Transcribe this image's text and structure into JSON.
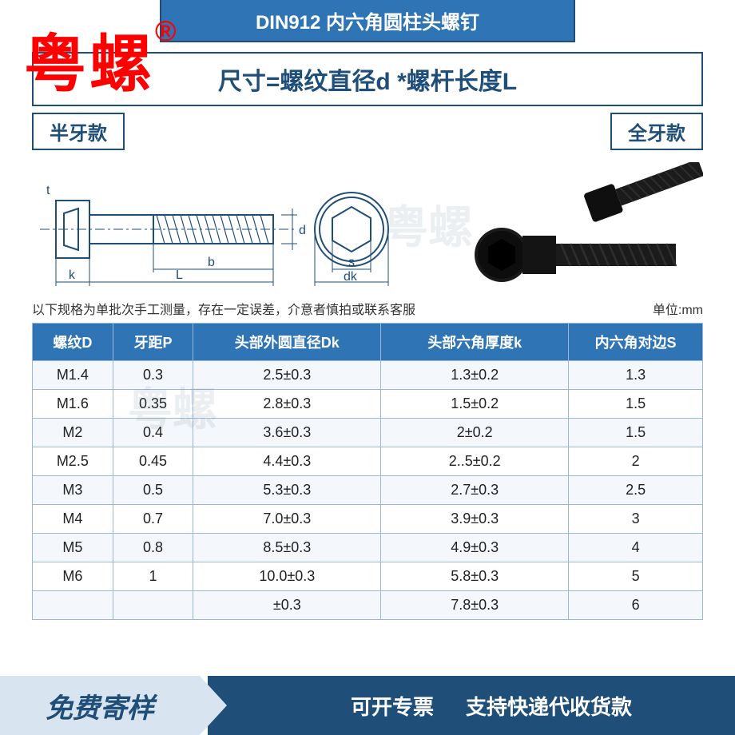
{
  "header": {
    "standard_title": "DIN912 内六角圆柱头螺钉"
  },
  "brand_watermark": "粤螺",
  "brand_symbol": "®",
  "formula": "尺寸=螺纹直径d *螺杆长度L",
  "variants": {
    "left_label": "半牙款",
    "right_label": "全牙款"
  },
  "diagram_labels": {
    "t": "t",
    "d": "d",
    "b": "b",
    "k": "k",
    "L": "L",
    "s": "s",
    "dk": "dk"
  },
  "light_watermark": "粤螺",
  "note_text": "以下规格为单批次手工测量，存在一定误差，介意者慎拍或联系客服",
  "unit_label": "单位:mm",
  "table": {
    "columns": [
      "螺纹D",
      "牙距P",
      "头部外圆直径Dk",
      "头部六角厚度k",
      "内六角对边S"
    ],
    "col_widths": [
      "12%",
      "12%",
      "28%",
      "28%",
      "20%"
    ],
    "header_bg": "#2f75b5",
    "header_fg": "#ffffff",
    "row_bg_odd": "#f4f8fc",
    "row_bg_even": "#ffffff",
    "border_color": "#9cb8d8",
    "rows": [
      [
        "M1.4",
        "0.3",
        "2.5±0.3",
        "1.3±0.2",
        "1.3"
      ],
      [
        "M1.6",
        "0.35",
        "2.8±0.3",
        "1.5±0.2",
        "1.5"
      ],
      [
        "M2",
        "0.4",
        "3.6±0.3",
        "2±0.2",
        "1.5"
      ],
      [
        "M2.5",
        "0.45",
        "4.4±0.3",
        "2..5±0.2",
        "2"
      ],
      [
        "M3",
        "0.5",
        "5.3±0.3",
        "2.7±0.3",
        "2.5"
      ],
      [
        "M4",
        "0.7",
        "7.0±0.3",
        "3.9±0.3",
        "3"
      ],
      [
        "M5",
        "0.8",
        "8.5±0.3",
        "4.9±0.3",
        "4"
      ],
      [
        "M6",
        "1",
        "10.0±0.3",
        "5.8±0.3",
        "5"
      ],
      [
        "",
        "",
        "±0.3",
        "7.8±0.3",
        "6"
      ]
    ]
  },
  "footer": {
    "left_text": "免费寄样",
    "right_text_1": "可开专票",
    "right_text_2": "支持快递代收货款",
    "left_bg": "#d8e4f0",
    "right_bg": "#1f4e78"
  },
  "colors": {
    "primary": "#2f75b5",
    "primary_dark": "#1f4e78",
    "brand_red": "#ff0000",
    "ink": "#1f4e78"
  }
}
